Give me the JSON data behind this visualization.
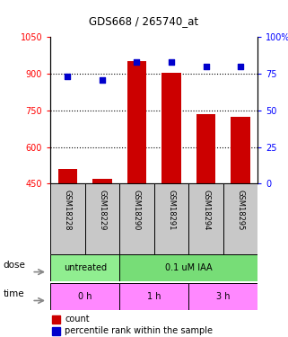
{
  "title": "GDS668 / 265740_at",
  "samples": [
    "GSM18228",
    "GSM18229",
    "GSM18290",
    "GSM18291",
    "GSM18294",
    "GSM18295"
  ],
  "bar_values": [
    510,
    468,
    950,
    905,
    735,
    725
  ],
  "scatter_values": [
    73,
    71,
    83,
    83,
    80,
    80
  ],
  "ylim_left": [
    450,
    1050
  ],
  "ylim_right": [
    0,
    100
  ],
  "yticks_left": [
    450,
    600,
    750,
    900,
    1050
  ],
  "yticks_right": [
    0,
    25,
    50,
    75,
    100
  ],
  "bar_color": "#cc0000",
  "scatter_color": "#0000cc",
  "dose_labels": [
    {
      "label": "untreated",
      "span": [
        0,
        2
      ],
      "color": "#90ee90"
    },
    {
      "label": "0.1 uM IAA",
      "span": [
        2,
        6
      ],
      "color": "#77dd77"
    }
  ],
  "time_labels": [
    {
      "label": "0 h",
      "span": [
        0,
        2
      ],
      "color": "#ff88ff"
    },
    {
      "label": "1 h",
      "span": [
        2,
        4
      ],
      "color": "#ff88ff"
    },
    {
      "label": "3 h",
      "span": [
        4,
        6
      ],
      "color": "#ff88ff"
    }
  ],
  "legend_bar_label": "count",
  "legend_scatter_label": "percentile rank within the sample",
  "sample_box_color": "#c8c8c8",
  "grid_yticks": [
    600,
    750,
    900
  ]
}
